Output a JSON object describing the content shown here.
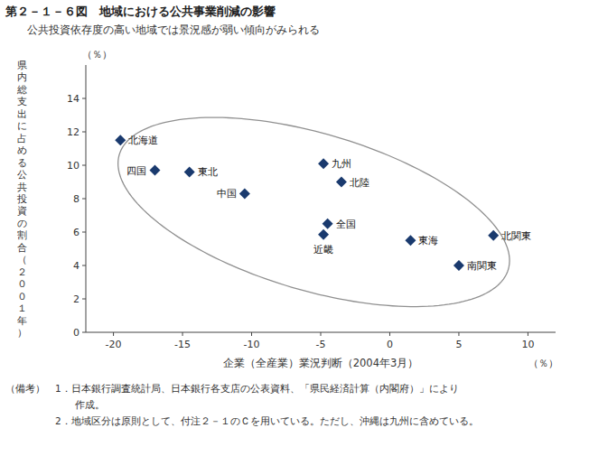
{
  "chart_data": {
    "type": "scatter",
    "title": "第２－１－６図　地域における公共事業削減の影響",
    "subtitle": "　　公共投資依存度の高い地域では景況感が弱い傾向がみられる",
    "x_label": "企業（全産業）業況判断（2004年3月）",
    "x_unit": "（％）",
    "y_unit": "（％）",
    "y_label": "県内総支出に占める公共投資の割合（２００１年）",
    "xlim": [
      -22,
      12
    ],
    "ylim": [
      0,
      16
    ],
    "xticks": [
      -20,
      -15,
      -10,
      -5,
      0,
      5,
      10
    ],
    "yticks": [
      0,
      2,
      4,
      6,
      8,
      10,
      12,
      14
    ],
    "grid": false,
    "marker": "diamond",
    "color": "#1a3a6e",
    "point_labels": [
      "北海道",
      "四国",
      "東北",
      "中国",
      "九州",
      "北陸",
      "全国",
      "近畿",
      "東海",
      "北関東",
      "南関東"
    ],
    "x": [
      -19.5,
      -17.0,
      -14.5,
      -10.5,
      -4.8,
      -3.5,
      -4.5,
      -4.8,
      1.5,
      7.5,
      5.0
    ],
    "values": [
      11.5,
      9.7,
      9.6,
      8.3,
      10.1,
      9.0,
      6.5,
      5.85,
      5.5,
      5.8,
      4.0
    ],
    "ellipse": {
      "center_x": -5.5,
      "center_y": 7.2,
      "width": 29.0,
      "height": 9.5,
      "angle": -13,
      "color": "#909090"
    },
    "notes": [
      "（備考）　1．日本銀行調査統計局、日本銀行各支店の公表資料、「県民経済計算（内閣府）」により",
      "　　　　　　　作成。",
      "　　　　　2．地域区分は原則として、付注２－１のＣを用いている。ただし、沖縄は九州に含めている。"
    ]
  }
}
